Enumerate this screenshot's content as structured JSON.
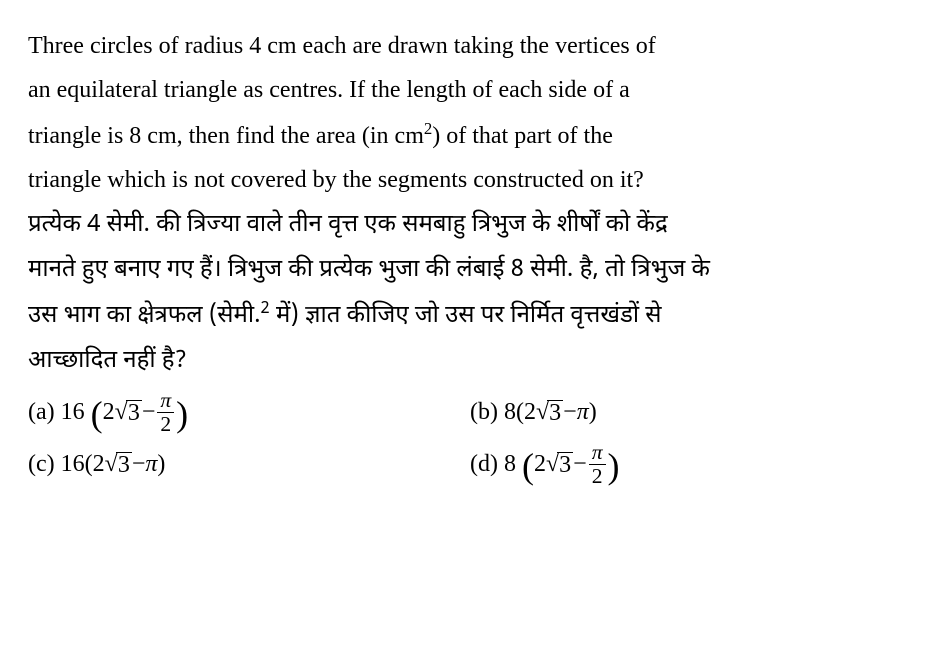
{
  "question": {
    "english": {
      "line1": "Three circles of radius 4 cm each are drawn taking the vertices of",
      "line2": "an equilateral triangle as centres. If the length of each side of a",
      "line3_prefix": "triangle is 8 cm, then find the area (in cm",
      "line3_sup": "2",
      "line3_suffix": ") of that part of the",
      "line4": "triangle which is not covered by the segments constructed on it?"
    },
    "hindi": {
      "line1": "प्रत्येक 4 सेमी. की त्रिज्या वाले तीन वृत्त एक समबाहु त्रिभुज के शीर्षों को केंद्र",
      "line2_prefix": "मानते हुए बनाए गए हैं। त्रिभुज की प्रत्येक भुजा की लंबाई 8 सेमी. है, तो त्रिभुज के",
      "line3_prefix": "उस भाग का क्षेत्रफल (सेमी.",
      "line3_sup": "2",
      "line3_suffix": " में) ज्ञात कीजिए जो उस पर निर्मित वृत्तखंडों से",
      "line4": "आच्छादित नहीं है?"
    }
  },
  "options": {
    "a": {
      "label": "(a)",
      "coef": "16",
      "inner_coef": "2",
      "sqrt_body": "3",
      "has_frac": true,
      "frac_num": "π",
      "frac_den": "2",
      "pi_whole": ""
    },
    "b": {
      "label": "(b)",
      "coef": "8",
      "inner_coef": "2",
      "sqrt_body": "3",
      "has_frac": false,
      "frac_num": "",
      "frac_den": "",
      "pi_whole": "π"
    },
    "c": {
      "label": "(c)",
      "coef": "16",
      "inner_coef": "2",
      "sqrt_body": "3",
      "has_frac": false,
      "frac_num": "",
      "frac_den": "",
      "pi_whole": "π"
    },
    "d": {
      "label": "(d)",
      "coef": "8",
      "inner_coef": "2",
      "sqrt_body": "3",
      "has_frac": true,
      "frac_num": "π",
      "frac_den": "2",
      "pi_whole": ""
    }
  },
  "symbols": {
    "minus": " − ",
    "sqrt": "√"
  }
}
